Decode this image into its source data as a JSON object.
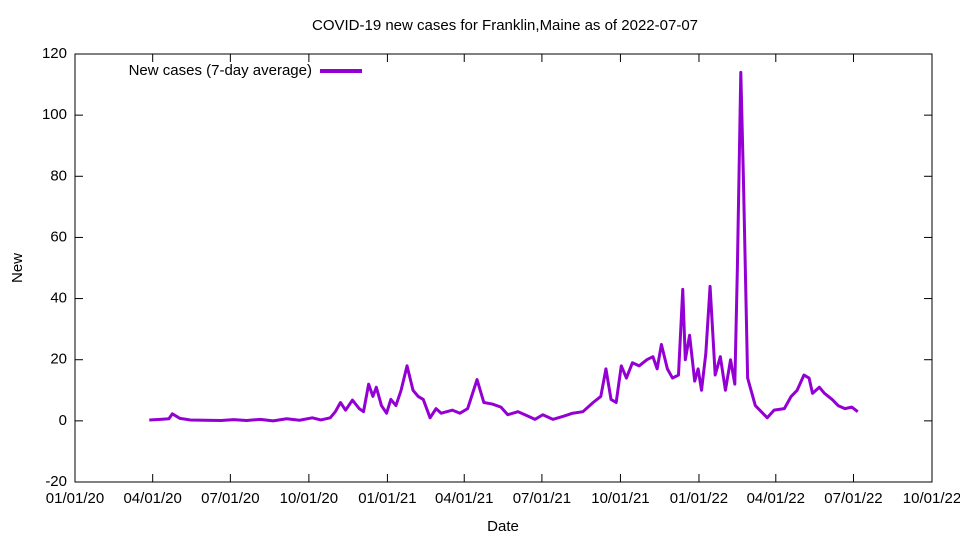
{
  "chart_data": {
    "type": "line",
    "title": "COVID-19 new cases for Franklin,Maine as of 2022-07-07",
    "x_label": "Date",
    "y_label": "New",
    "legend": "top-left",
    "xlim": [
      "2020-01-01",
      "2022-10-01"
    ],
    "ylim": [
      -20,
      120
    ],
    "yticks": [
      -20,
      0,
      20,
      40,
      60,
      80,
      100,
      120
    ],
    "xticks": [
      {
        "value": "2020-01-01",
        "label": "01/01/20"
      },
      {
        "value": "2020-04-01",
        "label": "04/01/20"
      },
      {
        "value": "2020-07-01",
        "label": "07/01/20"
      },
      {
        "value": "2020-10-01",
        "label": "10/01/20"
      },
      {
        "value": "2021-01-01",
        "label": "01/01/21"
      },
      {
        "value": "2021-04-01",
        "label": "04/01/21"
      },
      {
        "value": "2021-07-01",
        "label": "07/01/21"
      },
      {
        "value": "2021-10-01",
        "label": "10/01/21"
      },
      {
        "value": "2022-01-01",
        "label": "01/01/22"
      },
      {
        "value": "2022-04-01",
        "label": "04/01/22"
      },
      {
        "value": "2022-07-01",
        "label": "07/01/22"
      },
      {
        "value": "2022-10-01",
        "label": "10/01/22"
      }
    ],
    "x": [
      "2020-03-28",
      "2020-04-10",
      "2020-04-20",
      "2020-04-24",
      "2020-05-03",
      "2020-05-15",
      "2020-06-01",
      "2020-06-20",
      "2020-07-05",
      "2020-07-20",
      "2020-08-05",
      "2020-08-20",
      "2020-09-05",
      "2020-09-20",
      "2020-10-05",
      "2020-10-15",
      "2020-10-26",
      "2020-11-01",
      "2020-11-07",
      "2020-11-13",
      "2020-11-21",
      "2020-11-29",
      "2020-12-04",
      "2020-12-10",
      "2020-12-15",
      "2020-12-19",
      "2020-12-25",
      "2020-12-31",
      "2021-01-05",
      "2021-01-11",
      "2021-01-17",
      "2021-01-24",
      "2021-01-31",
      "2021-02-06",
      "2021-02-12",
      "2021-02-20",
      "2021-02-27",
      "2021-03-05",
      "2021-03-18",
      "2021-03-27",
      "2021-04-05",
      "2021-04-16",
      "2021-04-24",
      "2021-05-04",
      "2021-05-14",
      "2021-05-22",
      "2021-06-03",
      "2021-06-15",
      "2021-06-23",
      "2021-07-02",
      "2021-07-14",
      "2021-07-26",
      "2021-08-06",
      "2021-08-18",
      "2021-08-30",
      "2021-09-08",
      "2021-09-14",
      "2021-09-20",
      "2021-09-26",
      "2021-10-02",
      "2021-10-08",
      "2021-10-15",
      "2021-10-23",
      "2021-11-01",
      "2021-11-08",
      "2021-11-13",
      "2021-11-18",
      "2021-11-25",
      "2021-12-01",
      "2021-12-08",
      "2021-12-13",
      "2021-12-16",
      "2021-12-21",
      "2021-12-27",
      "2021-12-31",
      "2022-01-04",
      "2022-01-09",
      "2022-01-14",
      "2022-01-20",
      "2022-01-26",
      "2022-02-01",
      "2022-02-07",
      "2022-02-12",
      "2022-02-15",
      "2022-02-19",
      "2022-02-22",
      "2022-02-27",
      "2022-03-03",
      "2022-03-08",
      "2022-03-15",
      "2022-03-22",
      "2022-03-30",
      "2022-04-11",
      "2022-04-19",
      "2022-04-26",
      "2022-05-04",
      "2022-05-10",
      "2022-05-14",
      "2022-05-22",
      "2022-05-28",
      "2022-06-06",
      "2022-06-13",
      "2022-06-21",
      "2022-06-29",
      "2022-07-06"
    ],
    "series": [
      {
        "name": "New cases (7-day average)",
        "color": "#9400d3",
        "values": [
          0.3,
          0.5,
          0.7,
          2.3,
          0.8,
          0.3,
          0.2,
          0.1,
          0.4,
          0.1,
          0.5,
          0,
          0.7,
          0.2,
          1,
          0.3,
          1,
          3,
          6,
          3.5,
          6.8,
          4,
          3,
          12,
          8,
          11,
          5,
          2.5,
          7,
          5,
          10,
          18,
          10,
          8,
          7,
          1,
          4,
          2.5,
          3.5,
          2.5,
          4,
          13.5,
          6,
          5.5,
          4.5,
          2,
          3,
          1.5,
          0.5,
          2,
          0.5,
          1.5,
          2.5,
          3,
          6,
          8,
          17,
          7,
          6,
          18,
          14,
          19,
          18,
          20,
          21,
          17,
          25,
          17,
          14,
          15,
          43,
          20,
          28,
          13,
          17,
          10,
          22,
          44,
          15,
          21,
          10,
          20,
          12,
          50,
          114,
          80,
          14,
          10,
          5,
          3,
          1,
          3.5,
          4,
          8,
          10,
          15,
          14,
          9,
          11,
          9,
          7,
          5,
          4,
          4.5,
          3
        ]
      }
    ]
  }
}
